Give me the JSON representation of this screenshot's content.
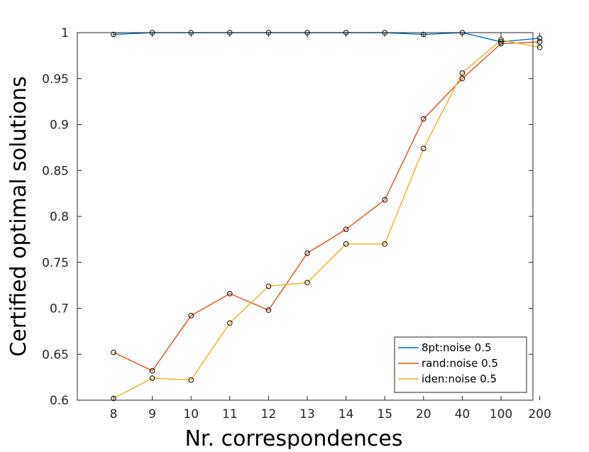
{
  "chart_data": {
    "type": "line",
    "title": "",
    "xlabel": "Nr. correspondences",
    "ylabel": "Certified optimal solutions",
    "categories": [
      "8",
      "9",
      "10",
      "11",
      "12",
      "13",
      "14",
      "15",
      "20",
      "40",
      "100",
      "200"
    ],
    "ylim": [
      0.6,
      1.0
    ],
    "yticks": [
      "0.6",
      "0.65",
      "0.7",
      "0.75",
      "0.8",
      "0.85",
      "0.9",
      "0.95",
      "1"
    ],
    "grid": false,
    "legend_position": "bottom-right",
    "marker": "circle",
    "series": [
      {
        "name": "8pt:noise 0.5",
        "color": "#0072bd",
        "values": [
          0.998,
          1.0,
          1.0,
          1.0,
          1.0,
          1.0,
          1.0,
          1.0,
          0.998,
          1.0,
          0.99,
          0.994
        ]
      },
      {
        "name": "rand:noise 0.5",
        "color": "#d95319",
        "values": [
          0.652,
          0.632,
          0.692,
          0.716,
          0.698,
          0.76,
          0.786,
          0.818,
          0.906,
          0.95,
          0.988,
          0.99
        ]
      },
      {
        "name": "iden:noise 0.5",
        "color": "#edb120",
        "values": [
          0.602,
          0.624,
          0.622,
          0.684,
          0.724,
          0.728,
          0.77,
          0.77,
          0.874,
          0.956,
          0.992,
          0.984
        ]
      }
    ]
  }
}
